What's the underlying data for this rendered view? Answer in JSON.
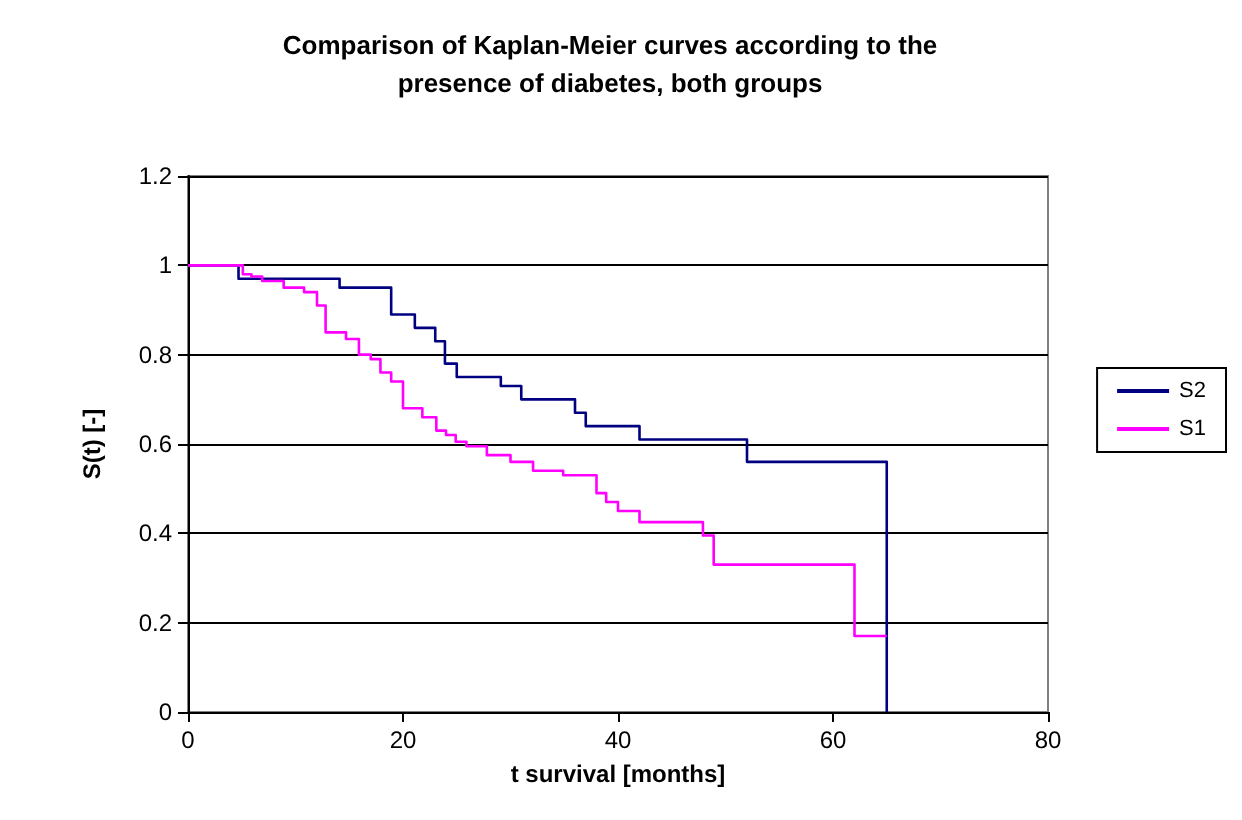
{
  "chart_data": {
    "type": "step",
    "title": "Comparison of Kaplan-Meier curves according to the\npresence of diabetes, both groups",
    "xlabel": "t survival [months]",
    "ylabel": "S(t) [-]",
    "xlim": [
      0,
      80
    ],
    "xticks": [
      0,
      20,
      40,
      60,
      80
    ],
    "ylim": [
      0,
      1.2
    ],
    "yticks": [
      0,
      0.2,
      0.4,
      0.6,
      0.8,
      1,
      1.2
    ],
    "grid": "y",
    "legend": "right",
    "marker": "none",
    "line_style": "solid",
    "series": [
      {
        "name": "S2",
        "color": "#000080",
        "x": [
          0,
          4.7,
          14.1,
          18.9,
          21.1,
          23,
          23.9,
          25,
          29.1,
          31,
          36,
          37,
          42,
          52,
          65
        ],
        "values": [
          1,
          0.97,
          0.95,
          0.89,
          0.86,
          0.83,
          0.78,
          0.75,
          0.73,
          0.7,
          0.67,
          0.64,
          0.61,
          0.56,
          0
        ]
      },
      {
        "name": "S1",
        "color": "#ff00ff",
        "x": [
          0,
          5.1,
          5.9,
          6.9,
          8.9,
          10.8,
          12,
          12.8,
          14.7,
          15.9,
          17,
          17.9,
          18.9,
          20,
          21.8,
          23.1,
          24,
          24.9,
          25.9,
          27.8,
          30,
          32.1,
          34.9,
          38,
          38.9,
          40,
          42,
          47.9,
          48.9,
          62,
          65
        ],
        "values": [
          1,
          0.98,
          0.975,
          0.965,
          0.95,
          0.94,
          0.91,
          0.85,
          0.835,
          0.8,
          0.79,
          0.76,
          0.74,
          0.68,
          0.66,
          0.63,
          0.62,
          0.605,
          0.595,
          0.575,
          0.56,
          0.54,
          0.53,
          0.49,
          0.47,
          0.45,
          0.425,
          0.395,
          0.33,
          0.17,
          0.17
        ]
      }
    ]
  }
}
